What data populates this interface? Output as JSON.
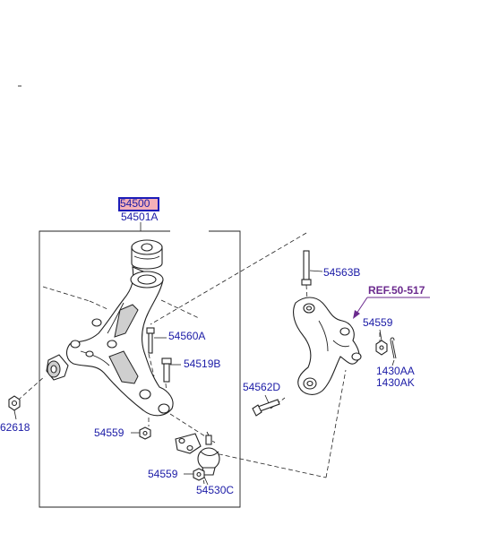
{
  "highlighted_part": "54500",
  "labels": {
    "p54501A": "54501A",
    "p54563B": "54563B",
    "ref": "REF.50-517",
    "p54559_knuckle": "54559",
    "p54560A": "54560A",
    "p54519B": "54519B",
    "p54562D": "54562D",
    "p1430AA": "1430AA",
    "p1430AK": "1430AK",
    "p62618": "62618",
    "p54559_arm": "54559",
    "p54559_balljoint": "54559",
    "p54530C": "54530C"
  },
  "colors": {
    "label": "#1a1aa6",
    "reference": "#6b2a8e",
    "highlight_fill": "#f4b0b8",
    "highlight_border": "#1c1cb8"
  }
}
